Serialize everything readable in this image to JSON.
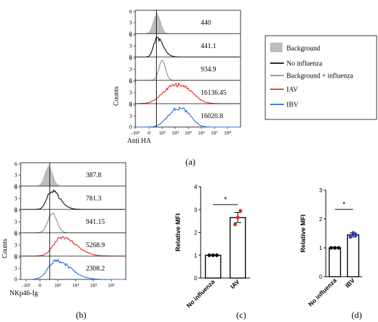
{
  "colors": {
    "background": "#bdbdbd",
    "no_influenza": "#000000",
    "bg_plus_influenza": "#8c8c8c",
    "iav": "#e8231e",
    "ibv": "#1f6fd6",
    "iav_points": "#e8231e",
    "ibv_points": "#2a3fcf",
    "control_points": "#000000"
  },
  "legend": {
    "items": [
      {
        "label": "Background",
        "series": "background"
      },
      {
        "label": "No influenza",
        "series": "no_influenza"
      },
      {
        "label": "Background + influenza",
        "series": "bg_plus_influenza"
      },
      {
        "label": "IAV",
        "series": "iav"
      },
      {
        "label": "IBV",
        "series": "ibv"
      }
    ]
  },
  "chart_data": [
    {
      "type": "area",
      "panel_label": "(a)",
      "xlabel": "Anti HA",
      "ylabel": "Counts",
      "x_ticks": [
        "-10²",
        "0",
        "10³",
        "10⁴",
        "10⁵",
        "10⁶",
        "10⁷",
        "10⁸"
      ],
      "y_ticks": [
        "0",
        "3",
        "6"
      ],
      "rows": [
        {
          "series": "background",
          "mfi_label": "440",
          "peak_decade": 0.6,
          "spread": 0.28,
          "shape": "narrow",
          "filled": true
        },
        {
          "series": "no_influenza",
          "mfi_label": "441.1",
          "peak_decade": 0.6,
          "spread": 0.35,
          "shape": "skewed",
          "filled": false
        },
        {
          "series": "bg_plus_influenza",
          "mfi_label": "934.9",
          "peak_decade": 1.0,
          "spread": 0.25,
          "shape": "narrow",
          "filled": false
        },
        {
          "series": "iav",
          "mfi_label": "16136.45",
          "peak_decade": 2.2,
          "spread": 1.1,
          "shape": "broad",
          "filled": false
        },
        {
          "series": "ibv",
          "mfi_label": "16020.8",
          "peak_decade": 2.3,
          "spread": 0.85,
          "shape": "broad",
          "filled": false
        }
      ]
    },
    {
      "type": "area",
      "panel_label": "(b)",
      "xlabel": "NKp46-Ig",
      "ylabel": "Counts",
      "x_ticks": [
        "-10³",
        "0",
        "10³",
        "10⁴",
        "10⁵",
        "10⁶"
      ],
      "y_ticks": [
        "0",
        "3",
        "6"
      ],
      "rows": [
        {
          "series": "background",
          "mfi_label": "387.8",
          "peak_decade": 0.5,
          "spread": 0.22,
          "shape": "narrow",
          "filled": true
        },
        {
          "series": "no_influenza",
          "mfi_label": "781.3",
          "peak_decade": 0.65,
          "spread": 0.35,
          "shape": "skewed",
          "filled": false
        },
        {
          "series": "bg_plus_influenza",
          "mfi_label": "941.15",
          "peak_decade": 0.7,
          "spread": 0.25,
          "shape": "narrow",
          "filled": false
        },
        {
          "series": "iav",
          "mfi_label": "5268.9",
          "peak_decade": 1.2,
          "spread": 0.6,
          "shape": "skewed",
          "filled": false
        },
        {
          "series": "ibv",
          "mfi_label": "2308.2",
          "peak_decade": 0.9,
          "spread": 0.6,
          "shape": "skewed",
          "filled": false
        }
      ]
    },
    {
      "type": "bar",
      "panel_label": "(c)",
      "categories": [
        "No influenza",
        "IAV"
      ],
      "values": [
        1.0,
        2.65
      ],
      "errors": [
        0.0,
        0.22
      ],
      "points": [
        [
          1.0,
          1.0,
          1.0
        ],
        [
          2.35,
          2.65,
          2.95
        ]
      ],
      "point_series": [
        "control_points",
        "iav_points"
      ],
      "ylabel": "Relative MFI",
      "ylim": [
        0,
        4
      ],
      "y_ticks": [
        0,
        1,
        2,
        3,
        4
      ],
      "significance": "*"
    },
    {
      "type": "bar",
      "panel_label": "(d)",
      "categories": [
        "No influenza",
        "IBV"
      ],
      "values": [
        1.0,
        1.45
      ],
      "errors": [
        0.0,
        0.07
      ],
      "points": [
        [
          1.0,
          1.0,
          1.0
        ],
        [
          1.38,
          1.52,
          1.45
        ]
      ],
      "point_series": [
        "control_points",
        "ibv_points"
      ],
      "ylabel": "Relative MFI",
      "ylim": [
        0,
        3
      ],
      "y_ticks": [
        0,
        1,
        2,
        3
      ],
      "significance": "*"
    }
  ]
}
